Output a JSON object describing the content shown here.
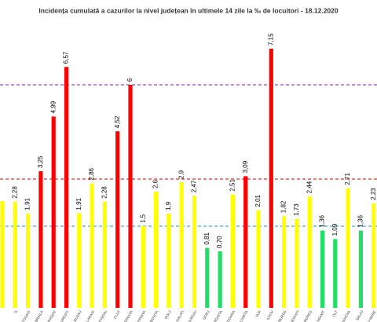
{
  "chart_data": {
    "type": "bar",
    "title": "Incidența cumulată a cazurilor la nivel județean în ultimele 14 zile   la ‰ de locuitori  - 18.12.2020",
    "categories": [
      null,
      "D",
      "BOTOSANI",
      "BRAILA",
      "BRASOV",
      "BUCURESTI",
      "BUZAU",
      "CALARASI",
      "CARAS-SEVERIN",
      "CLUJ",
      "CONSTANTA",
      "COVASNA",
      "DAMBOVITA",
      "DOLJ",
      "GALATI",
      "GIURGIU",
      "GORJ",
      "HARGHITA",
      "HUNEDOARA",
      "IALOMITA",
      "IASI",
      "ILFOV",
      "MARAMURES",
      "MEHEDINTI",
      "MURES",
      "NEAMT",
      "OLT",
      "PRAHOVA",
      "SALAJ",
      "SATU MARE"
    ],
    "values": [
      2.3,
      2.28,
      1.91,
      3.25,
      4.99,
      6.57,
      1.91,
      2.86,
      2.28,
      4.52,
      6,
      1.5,
      2.6,
      1.9,
      2.9,
      2.47,
      0.81,
      0.7,
      2.51,
      3.09,
      2.01,
      7.15,
      1.82,
      1.73,
      2.44,
      1.36,
      1.09,
      2.71,
      1.36,
      2.23
    ],
    "value_labels": [
      null,
      "2,28",
      "1,91",
      "3,25",
      "4,99",
      "6,57",
      "1,91",
      "2,86",
      "2,28",
      "4,52",
      "6",
      "1,5",
      "2,6",
      "1,9",
      "2,9",
      "2,47",
      "0,81",
      "0,70",
      "2,51",
      "3,09",
      "2,01",
      "7,15",
      "1,82",
      "1,73",
      "2,44",
      "1,36",
      "1,09",
      "2,71",
      "1,36",
      "2,23"
    ],
    "colors": [
      "#ffff00",
      "#ffff00",
      "#ffff00",
      "#ff0000",
      "#ff0000",
      "#ff0000",
      "#ffff00",
      "#ffff00",
      "#ffff00",
      "#ff0000",
      "#ff0000",
      "#ffff00",
      "#ffff00",
      "#ffff00",
      "#ffff00",
      "#ffff00",
      "#22dd66",
      "#22dd66",
      "#ffff00",
      "#ff0000",
      "#ffff00",
      "#ff0000",
      "#ffff00",
      "#ffff00",
      "#ffff00",
      "#22dd66",
      "#22dd66",
      "#ffff00",
      "#22dd66",
      "#ffff00"
    ],
    "ylim": [
      -1.1,
      7.6
    ],
    "reference_lines": [
      {
        "value": 6,
        "color": "#a040c0"
      },
      {
        "value": 3,
        "color": "#e03030"
      },
      {
        "value": 1.5,
        "color": "#40a8e0"
      }
    ]
  }
}
